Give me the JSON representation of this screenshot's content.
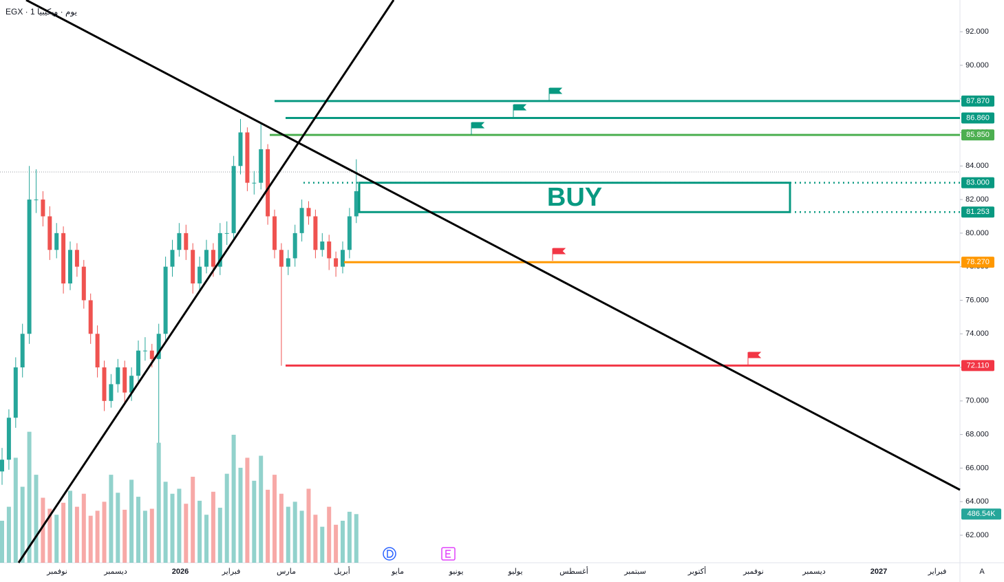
{
  "chart_data": {
    "type": "candlestick",
    "header": "EGX · 1 يوم · ويكيبيا",
    "buy_label": "BUY",
    "axis_corner": "A",
    "ylim": [
      60.36,
      93.89
    ],
    "yticks": [
      {
        "value": 62,
        "label": "62.000"
      },
      {
        "value": 64,
        "label": "64.000"
      },
      {
        "value": 66,
        "label": "66.000"
      },
      {
        "value": 68,
        "label": "68.000"
      },
      {
        "value": 70,
        "label": "70.000"
      },
      {
        "value": 72,
        "label": "72.000"
      },
      {
        "value": 74,
        "label": "74.000"
      },
      {
        "value": 76,
        "label": "76.000"
      },
      {
        "value": 78,
        "label": "78.000"
      },
      {
        "value": 80,
        "label": "80.000"
      },
      {
        "value": 82,
        "label": "82.000"
      },
      {
        "value": 84,
        "label": "84.000"
      },
      {
        "value": 86,
        "label": "86.000"
      },
      {
        "value": 88,
        "label": "88.000"
      },
      {
        "value": 90,
        "label": "90.000"
      },
      {
        "value": 92,
        "label": "92.000"
      }
    ],
    "x_labels": [
      "نوفمبر",
      "ديسمبر",
      "2026",
      "فبراير",
      "مارس",
      "أبريل",
      "مايو",
      "يونيو",
      "يوليو",
      "أغسطس",
      "سبتمبر",
      "أكتوبر",
      "نوفمبر",
      "ديسمبر",
      "2027",
      "فبراير"
    ],
    "levels": [
      {
        "value": 87.87,
        "label": "87.870",
        "color": "#089981"
      },
      {
        "value": 86.86,
        "label": "86.860",
        "color": "#089981"
      },
      {
        "value": 85.85,
        "label": "85.850",
        "color": "#4caf50"
      },
      {
        "value": 83,
        "label": "83.000",
        "color": "#089981"
      },
      {
        "value": 81.253,
        "label": "81.253",
        "color": "#089981"
      },
      {
        "value": 78.27,
        "label": "78.270",
        "color": "#ff9800"
      },
      {
        "value": 72.11,
        "label": "72.110",
        "color": "#f23645"
      }
    ],
    "up_color": "#26a69a",
    "down_color": "#ef5350",
    "candles": {
      "open": [
        65.8,
        66.5,
        69,
        72,
        74,
        82,
        82,
        81,
        79,
        80,
        77,
        79,
        78,
        76,
        74,
        72,
        70,
        71,
        72,
        70.5,
        71.5,
        73,
        73,
        72.5,
        74,
        78,
        79,
        80,
        79,
        77,
        78,
        79,
        78,
        80,
        80,
        84,
        86,
        83,
        83,
        85,
        81,
        79,
        78,
        78.5,
        80,
        81.5,
        81,
        79,
        79.5,
        78.5,
        78,
        79,
        81
      ],
      "high": [
        67.2,
        69.5,
        72.6,
        74.6,
        84,
        83.8,
        82.5,
        81.6,
        80.6,
        80.4,
        79.5,
        79.4,
        78.4,
        76.4,
        74.5,
        72.4,
        71.6,
        72.5,
        72.4,
        72,
        73.6,
        73.8,
        73.4,
        74.6,
        78.6,
        79.6,
        80.6,
        80.5,
        79.4,
        78.6,
        79.6,
        79.4,
        80.6,
        80.7,
        84.6,
        86.8,
        86.3,
        83.7,
        86.5,
        85.3,
        81.4,
        79.4,
        79,
        80.5,
        82,
        81.9,
        81.4,
        80,
        79.9,
        78.9,
        79.5,
        81.5,
        84.4
      ],
      "low": [
        65,
        65.9,
        68.4,
        71.4,
        73.4,
        81.2,
        80.4,
        78.4,
        78.5,
        76.4,
        76.6,
        77.4,
        75.5,
        73.4,
        71.4,
        69.4,
        69.6,
        70.5,
        69.9,
        70,
        71,
        72.4,
        72,
        67.5,
        73.6,
        77.4,
        78.6,
        78.4,
        76.4,
        76.5,
        77.6,
        77.4,
        77.5,
        79.3,
        79.5,
        83.5,
        82.5,
        82.3,
        82.6,
        80.5,
        78.5,
        72.1,
        77.5,
        78,
        79.5,
        80.5,
        78.5,
        78.6,
        77.8,
        77.4,
        77.6,
        78.5,
        80.6
      ],
      "close": [
        66.5,
        69,
        72,
        74,
        82,
        82,
        81,
        79,
        80,
        77,
        79,
        78,
        76,
        74,
        72,
        70,
        71,
        72,
        70.5,
        71.5,
        73,
        73,
        72.5,
        74,
        78,
        79,
        80,
        79,
        77,
        78,
        79,
        78,
        80,
        80,
        84,
        86,
        83,
        83,
        85,
        81,
        79,
        78,
        78.5,
        80,
        81.5,
        81,
        79,
        79.5,
        78.5,
        78,
        79,
        81,
        82.5
      ]
    },
    "volume": {
      "values": [
        420000,
        560000,
        1050000,
        760000,
        1310000,
        880000,
        650000,
        540000,
        480000,
        600000,
        720000,
        560000,
        690000,
        470000,
        520000,
        610000,
        880000,
        700000,
        530000,
        830000,
        660000,
        520000,
        540000,
        1200000,
        810000,
        690000,
        740000,
        590000,
        860000,
        620000,
        480000,
        710000,
        550000,
        890000,
        1280000,
        950000,
        1050000,
        820000,
        1070000,
        730000,
        880000,
        690000,
        560000,
        610000,
        520000,
        740000,
        480000,
        360000,
        560000,
        380000,
        420000,
        510000,
        486540
      ],
      "last_label": "486.54K",
      "max": 1500000
    }
  }
}
